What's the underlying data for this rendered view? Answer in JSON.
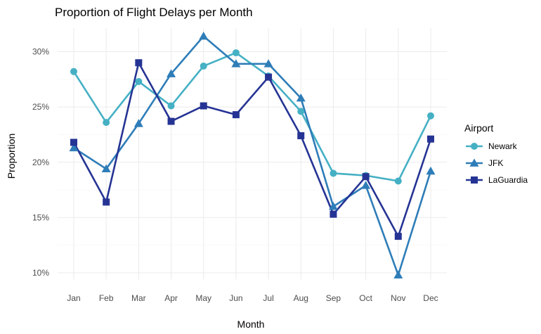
{
  "chart_data": {
    "type": "line",
    "title": "Proportion of Flight Delays per Month",
    "xlabel": "Month",
    "ylabel": "Proportion",
    "categories": [
      "Jan",
      "Feb",
      "Mar",
      "Apr",
      "May",
      "Jun",
      "Jul",
      "Aug",
      "Sep",
      "Oct",
      "Nov",
      "Dec"
    ],
    "ylim": [
      9.2,
      32.3
    ],
    "yticks": [
      10,
      15,
      20,
      25,
      30
    ],
    "ytick_labels": [
      "10%",
      "15%",
      "20%",
      "25%",
      "30%"
    ],
    "grid": true,
    "legend": {
      "title": "Airport",
      "position": "right"
    },
    "series": [
      {
        "name": "Newark",
        "color": "#45B0C4",
        "marker": "circle",
        "values": [
          28.2,
          23.6,
          27.3,
          25.1,
          28.7,
          29.9,
          27.8,
          24.6,
          19.0,
          18.8,
          18.3,
          24.2
        ]
      },
      {
        "name": "JFK",
        "color": "#2E7DB8",
        "marker": "triangle",
        "values": [
          21.3,
          19.4,
          23.5,
          28.0,
          31.4,
          28.9,
          28.9,
          25.8,
          16.0,
          17.9,
          9.8,
          19.2
        ]
      },
      {
        "name": "LaGuardia",
        "color": "#253494",
        "marker": "square",
        "values": [
          21.8,
          16.4,
          29.0,
          23.7,
          25.1,
          24.3,
          27.7,
          22.4,
          15.3,
          18.7,
          13.3,
          22.1
        ]
      }
    ]
  }
}
